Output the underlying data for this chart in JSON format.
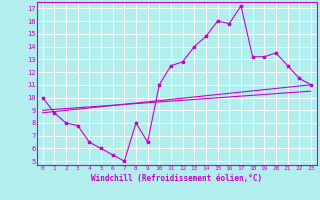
{
  "title": "",
  "xlabel": "Windchill (Refroidissement éolien,°C)",
  "ylabel": "",
  "background_color": "#b2eeee",
  "line_color": "#cc00cc",
  "grid_color": "#ffffff",
  "xlim": [
    -0.5,
    23.5
  ],
  "ylim": [
    4.7,
    17.5
  ],
  "x_ticks": [
    0,
    1,
    2,
    3,
    4,
    5,
    6,
    7,
    8,
    9,
    10,
    11,
    12,
    13,
    14,
    15,
    16,
    17,
    18,
    19,
    20,
    21,
    22,
    23
  ],
  "y_ticks": [
    5,
    6,
    7,
    8,
    9,
    10,
    11,
    12,
    13,
    14,
    15,
    16,
    17
  ],
  "line1_x": [
    0,
    1,
    2,
    3,
    4,
    5,
    6,
    7,
    8,
    9,
    10,
    11,
    12,
    13,
    14,
    15,
    16,
    17,
    18,
    19,
    20,
    21,
    22,
    23
  ],
  "line1_y": [
    10.0,
    8.8,
    8.0,
    7.8,
    6.5,
    6.0,
    5.5,
    5.0,
    8.0,
    6.5,
    11.0,
    12.5,
    12.8,
    14.0,
    14.8,
    16.0,
    15.8,
    17.2,
    13.2,
    13.2,
    13.5,
    12.5,
    11.5,
    11.0
  ],
  "line2_x": [
    0,
    23
  ],
  "line2_y": [
    8.8,
    11.0
  ],
  "line3_x": [
    0,
    23
  ],
  "line3_y": [
    9.0,
    10.5
  ]
}
